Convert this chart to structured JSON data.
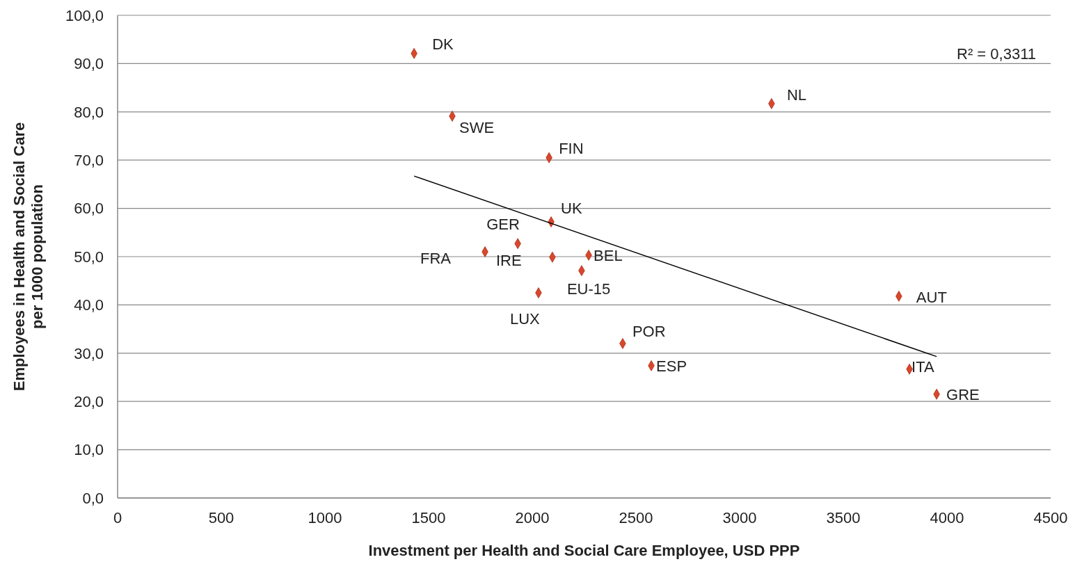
{
  "chart_data": {
    "type": "scatter",
    "xlabel": "Investment per  Health and Social Care Employee, USD PPP",
    "ylabel": "Employees in Health and Social Care\nper 1000 population",
    "series": [
      {
        "color": "#d9472b",
        "marker": "diamond",
        "x": [
          1430,
          1614,
          2081,
          3154,
          2091,
          1930,
          1772,
          2097,
          2272,
          2238,
          2030,
          3768,
          2436,
          2574,
          3819,
          3950
        ],
        "values": [
          92.1,
          79.1,
          70.5,
          81.7,
          57.2,
          52.7,
          51.0,
          49.9,
          50.3,
          47.1,
          42.5,
          41.8,
          32.0,
          27.4,
          26.7,
          21.5
        ]
      },
      {
        "type": "line",
        "color": "#000000",
        "marker": "none",
        "x": [
          1430,
          3950
        ],
        "values": [
          66.7,
          29.3
        ]
      }
    ],
    "annotations": [
      {
        "text": "DK",
        "x": 1430,
        "y": 92.1
      },
      {
        "text": "SWE",
        "x": 1614,
        "y": 79.1
      },
      {
        "text": "FIN",
        "x": 2081,
        "y": 70.5
      },
      {
        "text": "NL",
        "x": 3154,
        "y": 81.7
      },
      {
        "text": "UK",
        "x": 2091,
        "y": 57.2
      },
      {
        "text": "GER",
        "x": 1930,
        "y": 52.7
      },
      {
        "text": "FRA",
        "x": 1772,
        "y": 51.0
      },
      {
        "text": "IRE",
        "x": 2097,
        "y": 49.9
      },
      {
        "text": "BEL",
        "x": 2272,
        "y": 50.3
      },
      {
        "text": "EU-15",
        "x": 2238,
        "y": 47.1
      },
      {
        "text": "LUX",
        "x": 2030,
        "y": 42.5
      },
      {
        "text": "AUT",
        "x": 3768,
        "y": 41.8
      },
      {
        "text": "POR",
        "x": 2436,
        "y": 32.0
      },
      {
        "text": "ESP",
        "x": 2574,
        "y": 27.4
      },
      {
        "text": "ITA",
        "x": 3819,
        "y": 26.7
      },
      {
        "text": "GRE",
        "x": 3950,
        "y": 21.5
      },
      "R² = 0,3311"
    ],
    "xlim": [
      0,
      4500
    ],
    "xticks": [
      0,
      500,
      1000,
      1500,
      2000,
      2500,
      3000,
      3500,
      4000,
      4500
    ],
    "ylim": [
      0,
      100
    ],
    "yticks": [
      {
        "value": 0,
        "label": "0,0"
      },
      {
        "value": 10,
        "label": "10,0"
      },
      {
        "value": 20,
        "label": "20,0"
      },
      {
        "value": 30,
        "label": "30,0"
      },
      {
        "value": 40,
        "label": "40,0"
      },
      {
        "value": 50,
        "label": "50,0"
      },
      {
        "value": 60,
        "label": "60,0"
      },
      {
        "value": 70,
        "label": "70,0"
      },
      {
        "value": 80,
        "label": "80,0"
      },
      {
        "value": 90,
        "label": "90,0"
      },
      {
        "value": 100,
        "label": "100,0"
      }
    ],
    "grid": "y"
  }
}
